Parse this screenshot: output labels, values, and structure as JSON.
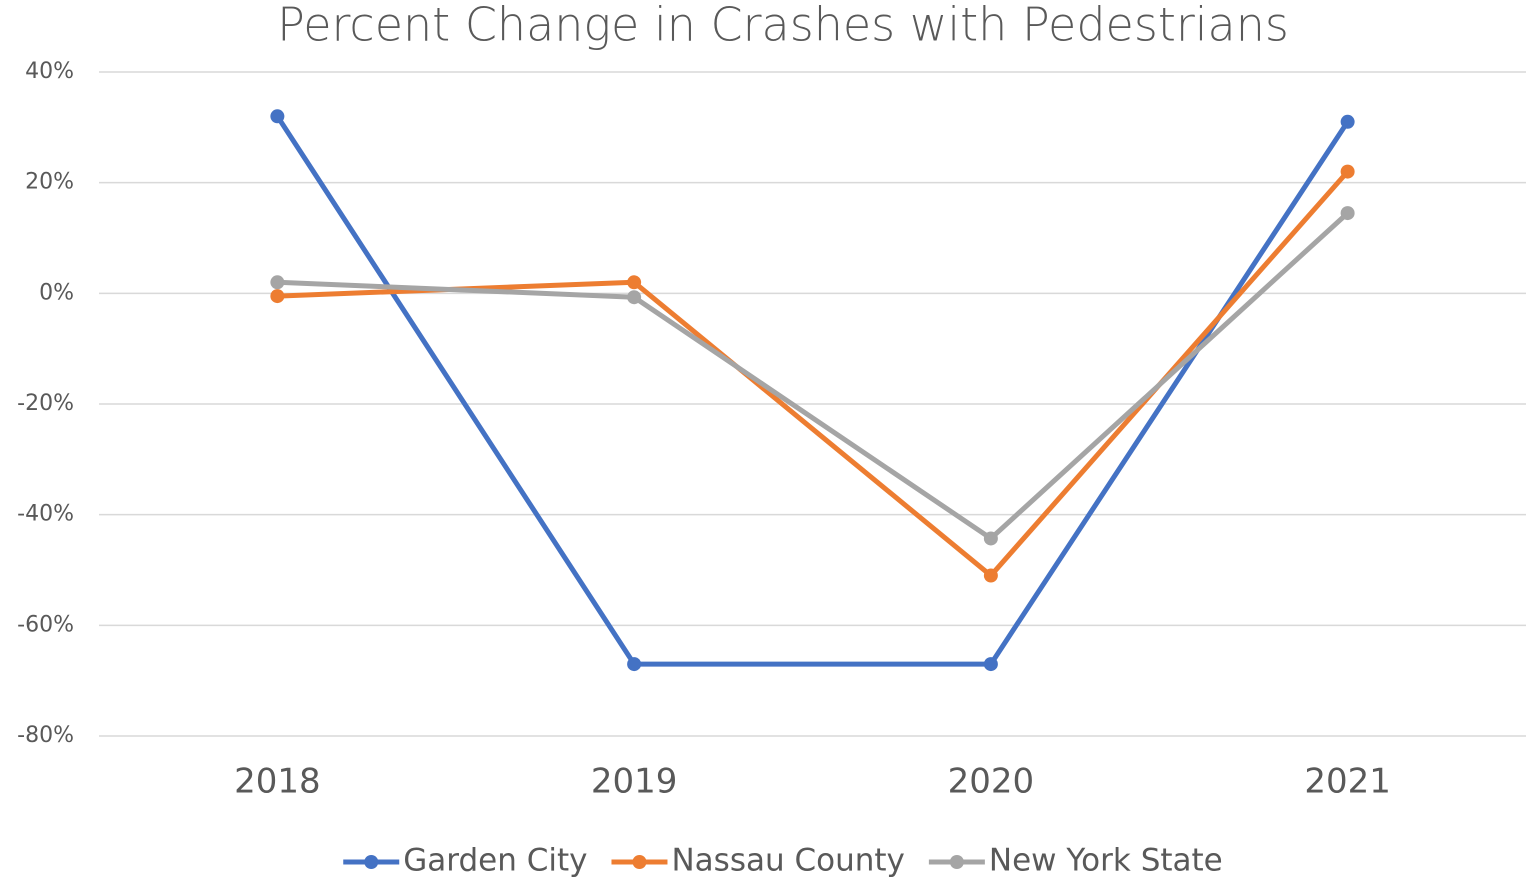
{
  "chart_data": {
    "type": "line",
    "title": "Percent Change in Crashes with Pedestrians",
    "categories": [
      "2018",
      "2019",
      "2020",
      "2021"
    ],
    "series": [
      {
        "name": "Garden City",
        "color": "#4472c4",
        "values": [
          32,
          -67,
          -67,
          31
        ]
      },
      {
        "name": "Nassau County",
        "color": "#ed7d31",
        "values": [
          -0.5,
          2,
          -51,
          22
        ]
      },
      {
        "name": "New York State",
        "color": "#a5a5a5",
        "values": [
          2,
          -0.7,
          -44.3,
          14.5
        ]
      }
    ],
    "ylim": [
      -80,
      40
    ],
    "yticks": [
      {
        "value": -80,
        "label": "-80%"
      },
      {
        "value": -60,
        "label": "-60%"
      },
      {
        "value": -40,
        "label": "-40%"
      },
      {
        "value": -20,
        "label": "-20%"
      },
      {
        "value": 0,
        "label": "0%"
      },
      {
        "value": 20,
        "label": "20%"
      },
      {
        "value": 40,
        "label": "40%"
      }
    ],
    "grid": true,
    "legend": "bottom"
  }
}
